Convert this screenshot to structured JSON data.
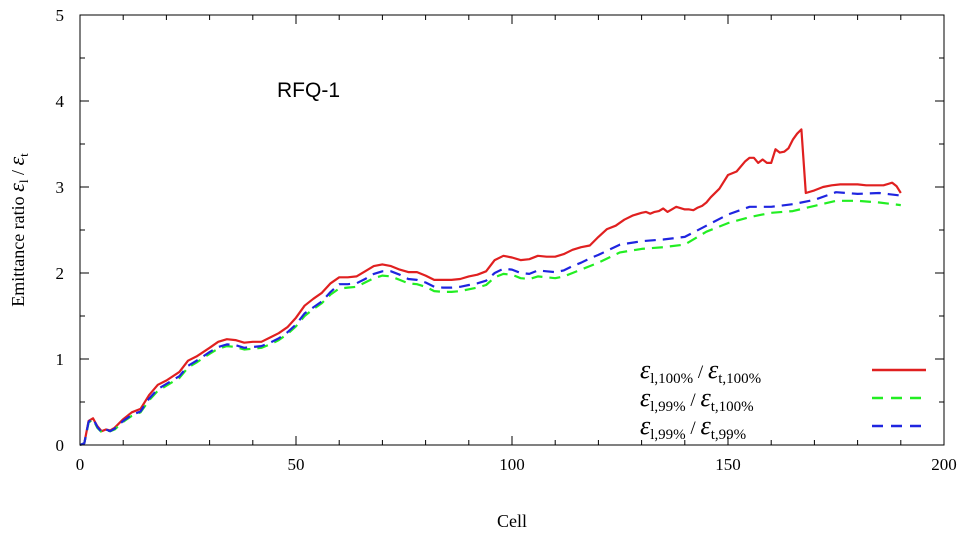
{
  "chart_data": {
    "type": "line",
    "annotation": "RFQ-1",
    "xlabel": "Cell",
    "ylabel_main": "Emittance ratio ",
    "ylabel_eps1": "ε",
    "ylabel_sub1": "l",
    "ylabel_slash": " / ",
    "ylabel_eps2": "ε",
    "ylabel_sub2": "t",
    "xlim": [
      0,
      200
    ],
    "ylim": [
      0,
      5
    ],
    "xticks": [
      "0",
      "50",
      "100",
      "150",
      "200"
    ],
    "yticks": [
      "0",
      "1",
      "2",
      "3",
      "4",
      "5"
    ],
    "grid": false,
    "legend_position": "bottom-right",
    "series": [
      {
        "legend_eps1": "ε",
        "legend_sub1": "l,100%",
        "legend_slash": " / ",
        "legend_eps2": "ε",
        "legend_sub2": "t,100%",
        "color": "#e02020",
        "dash": "solid",
        "x": [
          0,
          1,
          2,
          3,
          4,
          5,
          6,
          7,
          8,
          10,
          12,
          14,
          16,
          18,
          20,
          23,
          25,
          27,
          30,
          32,
          34,
          36,
          38,
          40,
          42,
          44,
          46,
          48,
          50,
          52,
          54,
          56,
          58,
          60,
          62,
          64,
          66,
          68,
          70,
          72,
          74,
          76,
          78,
          80,
          82,
          84,
          86,
          88,
          90,
          92,
          94,
          96,
          98,
          100,
          102,
          104,
          106,
          108,
          110,
          112,
          114,
          116,
          118,
          120,
          122,
          124,
          126,
          128,
          130,
          131,
          132,
          133,
          134,
          135,
          136,
          137,
          138,
          140,
          141,
          142,
          143,
          144,
          145,
          146,
          148,
          150,
          152,
          154,
          155,
          156,
          157,
          158,
          159,
          160,
          161,
          162,
          163,
          164,
          165,
          166,
          167,
          168,
          170,
          172,
          174,
          176,
          178,
          180,
          182,
          184,
          186,
          188,
          189,
          190
        ],
        "y": [
          0,
          0.02,
          0.28,
          0.31,
          0.22,
          0.16,
          0.18,
          0.17,
          0.2,
          0.3,
          0.38,
          0.42,
          0.58,
          0.7,
          0.75,
          0.85,
          0.98,
          1.03,
          1.13,
          1.2,
          1.23,
          1.22,
          1.19,
          1.2,
          1.2,
          1.25,
          1.3,
          1.37,
          1.48,
          1.62,
          1.7,
          1.77,
          1.88,
          1.95,
          1.95,
          1.96,
          2.02,
          2.08,
          2.1,
          2.08,
          2.04,
          2.01,
          2.01,
          1.97,
          1.92,
          1.92,
          1.92,
          1.93,
          1.96,
          1.98,
          2.02,
          2.15,
          2.2,
          2.18,
          2.15,
          2.16,
          2.2,
          2.19,
          2.19,
          2.22,
          2.27,
          2.3,
          2.32,
          2.42,
          2.51,
          2.55,
          2.62,
          2.67,
          2.7,
          2.71,
          2.69,
          2.71,
          2.72,
          2.75,
          2.71,
          2.74,
          2.77,
          2.74,
          2.74,
          2.73,
          2.76,
          2.78,
          2.82,
          2.88,
          2.98,
          3.14,
          3.18,
          3.3,
          3.34,
          3.34,
          3.28,
          3.32,
          3.28,
          3.28,
          3.44,
          3.4,
          3.41,
          3.45,
          3.55,
          3.62,
          3.67,
          2.93,
          2.96,
          3.0,
          3.02,
          3.03,
          3.03,
          3.03,
          3.02,
          3.02,
          3.02,
          3.05,
          3.01,
          2.93
        ]
      },
      {
        "legend_eps1": "ε",
        "legend_sub1": "l,99%",
        "legend_slash": " / ",
        "legend_eps2": "ε",
        "legend_sub2": "t,100%",
        "color": "#22ee22",
        "dash": "dashed",
        "x": [
          0,
          1,
          2,
          3,
          4,
          5,
          6,
          7,
          8,
          10,
          12,
          14,
          16,
          18,
          20,
          23,
          25,
          27,
          30,
          32,
          34,
          36,
          38,
          40,
          42,
          44,
          46,
          48,
          50,
          52,
          54,
          56,
          58,
          60,
          62,
          64,
          66,
          68,
          70,
          72,
          74,
          76,
          78,
          80,
          82,
          84,
          86,
          88,
          90,
          92,
          94,
          96,
          98,
          100,
          102,
          104,
          106,
          108,
          110,
          112,
          114,
          116,
          118,
          120,
          125,
          130,
          135,
          140,
          145,
          150,
          155,
          160,
          165,
          170,
          175,
          180,
          185,
          190
        ],
        "y": [
          0,
          0.02,
          0.26,
          0.3,
          0.2,
          0.15,
          0.17,
          0.16,
          0.18,
          0.27,
          0.34,
          0.38,
          0.52,
          0.63,
          0.69,
          0.78,
          0.9,
          0.96,
          1.06,
          1.12,
          1.15,
          1.14,
          1.11,
          1.12,
          1.13,
          1.17,
          1.22,
          1.29,
          1.38,
          1.5,
          1.58,
          1.65,
          1.75,
          1.82,
          1.83,
          1.84,
          1.89,
          1.94,
          1.97,
          1.96,
          1.92,
          1.88,
          1.87,
          1.84,
          1.79,
          1.78,
          1.78,
          1.79,
          1.81,
          1.83,
          1.86,
          1.95,
          1.99,
          1.98,
          1.94,
          1.93,
          1.96,
          1.95,
          1.94,
          1.96,
          2.0,
          2.04,
          2.08,
          2.12,
          2.24,
          2.28,
          2.3,
          2.33,
          2.48,
          2.58,
          2.65,
          2.7,
          2.72,
          2.78,
          2.84,
          2.84,
          2.82,
          2.79
        ]
      },
      {
        "legend_eps1": "ε",
        "legend_sub1": "l,99%",
        "legend_slash": " / ",
        "legend_eps2": "ε",
        "legend_sub2": "t,99%",
        "color": "#1f25e0",
        "dash": "dashed",
        "x": [
          0,
          1,
          2,
          3,
          4,
          5,
          6,
          7,
          8,
          10,
          12,
          14,
          16,
          18,
          20,
          23,
          25,
          27,
          30,
          32,
          34,
          36,
          38,
          40,
          42,
          44,
          46,
          48,
          50,
          52,
          54,
          56,
          58,
          60,
          62,
          64,
          66,
          68,
          70,
          72,
          74,
          76,
          78,
          80,
          82,
          84,
          86,
          88,
          90,
          92,
          94,
          96,
          98,
          100,
          102,
          104,
          106,
          108,
          110,
          112,
          114,
          116,
          118,
          120,
          125,
          130,
          135,
          140,
          145,
          150,
          155,
          160,
          165,
          170,
          175,
          180,
          185,
          190
        ],
        "y": [
          0,
          0.02,
          0.27,
          0.31,
          0.21,
          0.15,
          0.18,
          0.16,
          0.19,
          0.28,
          0.35,
          0.39,
          0.54,
          0.65,
          0.71,
          0.8,
          0.92,
          0.98,
          1.08,
          1.14,
          1.17,
          1.16,
          1.13,
          1.14,
          1.15,
          1.19,
          1.24,
          1.31,
          1.4,
          1.53,
          1.6,
          1.67,
          1.78,
          1.87,
          1.87,
          1.88,
          1.93,
          1.99,
          2.02,
          2.02,
          1.98,
          1.93,
          1.92,
          1.89,
          1.84,
          1.83,
          1.83,
          1.84,
          1.86,
          1.88,
          1.91,
          2.0,
          2.05,
          2.04,
          2.0,
          1.99,
          2.03,
          2.02,
          2.01,
          2.03,
          2.08,
          2.12,
          2.17,
          2.21,
          2.33,
          2.37,
          2.39,
          2.42,
          2.55,
          2.68,
          2.77,
          2.77,
          2.8,
          2.85,
          2.94,
          2.92,
          2.93,
          2.9
        ]
      }
    ]
  }
}
